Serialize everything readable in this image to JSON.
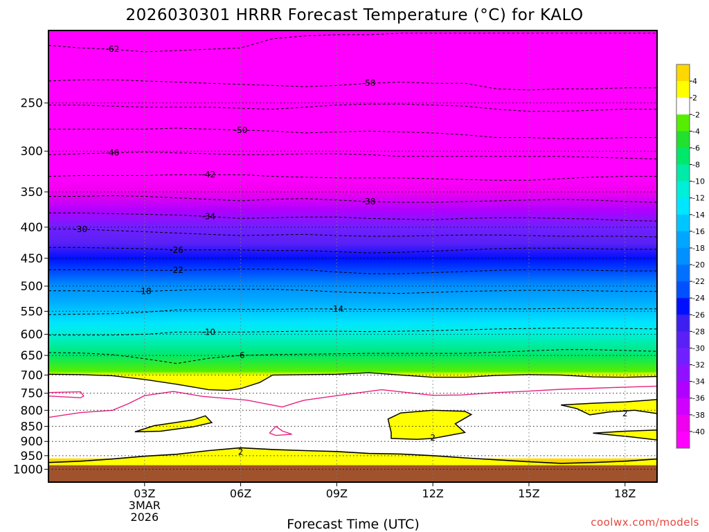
{
  "chart_data": {
    "type": "contour",
    "title": "2026030301 HRRR Forecast Temperature (°C) for KALO",
    "xlabel": "Forecast Time (UTC)",
    "ylabel": "",
    "credit": "coolwx.com/models",
    "y_scale": "log-pressure",
    "y_axis": {
      "min": 190,
      "max": 1050,
      "ticks": [
        250,
        300,
        350,
        400,
        450,
        500,
        550,
        600,
        650,
        700,
        750,
        800,
        850,
        900,
        950,
        1000
      ]
    },
    "x_axis": {
      "min_hour": 0,
      "max_hour": 19,
      "ticks": [
        {
          "hour": 3,
          "lines": [
            "03Z",
            "3MAR",
            "2026"
          ]
        },
        {
          "hour": 6,
          "lines": [
            "06Z"
          ]
        },
        {
          "hour": 9,
          "lines": [
            "09Z"
          ]
        },
        {
          "hour": 12,
          "lines": [
            "12Z"
          ]
        },
        {
          "hour": 15,
          "lines": [
            "15Z"
          ]
        },
        {
          "hour": 18,
          "lines": [
            "18Z"
          ]
        }
      ]
    },
    "x_hours": [
      0,
      1,
      2,
      3,
      4,
      5,
      6,
      7,
      8,
      9,
      10,
      11,
      12,
      13,
      14,
      15,
      16,
      17,
      18,
      19
    ],
    "profile_pressures": [
      190,
      230,
      250,
      275,
      300,
      330,
      350,
      375,
      400,
      425,
      450,
      475,
      500,
      525,
      550,
      575,
      600,
      650,
      690,
      700,
      800,
      925,
      965,
      990
    ],
    "profile_temps": [
      -64,
      -58,
      -54,
      -50,
      -46,
      -42,
      -39,
      -35,
      -31,
      -28,
      -25,
      -22,
      -19,
      -16,
      -14,
      -12,
      -10,
      -6,
      -3,
      1,
      1,
      1,
      3,
      5
    ],
    "dashed_isotherms": [
      {
        "value": -62,
        "label": "-62",
        "label_hour": 2.0,
        "p": [
          201,
          203,
          204,
          206,
          205,
          204,
          203,
          196,
          194,
          193,
          193,
          192,
          192,
          192,
          192,
          192,
          192,
          192,
          192,
          192
        ]
      },
      {
        "value": -58,
        "label": "-58",
        "label_hour": 10.0,
        "p": [
          230,
          229,
          229,
          230,
          231,
          232,
          233,
          234,
          235,
          234,
          232,
          231,
          232,
          232,
          237,
          238,
          237,
          237,
          236,
          236
        ]
      },
      {
        "value": -54,
        "label": "",
        "label_hour": 0,
        "p": [
          252,
          252,
          253,
          254,
          254,
          254,
          255,
          256,
          254,
          252,
          251,
          251,
          252,
          253,
          256,
          258,
          258,
          257,
          256,
          256
        ]
      },
      {
        "value": -50,
        "label": "-50",
        "label_hour": 6.0,
        "p": [
          276,
          276,
          276,
          276,
          275,
          276,
          277,
          278,
          280,
          279,
          278,
          279,
          280,
          282,
          285,
          285,
          286,
          286,
          285,
          285
        ]
      },
      {
        "value": -46,
        "label": "-46",
        "label_hour": 2.0,
        "p": [
          304,
          303,
          302,
          301,
          302,
          303,
          304,
          304,
          303,
          303,
          304,
          306,
          306,
          306,
          306,
          306,
          306,
          307,
          308,
          309
        ]
      },
      {
        "value": -42,
        "label": "-42",
        "label_hour": 5.0,
        "p": [
          330,
          329,
          329,
          329,
          328,
          328,
          328,
          330,
          331,
          332,
          332,
          332,
          333,
          334,
          335,
          335,
          333,
          331,
          330,
          330
        ]
      },
      {
        "value": -38,
        "label": "-38",
        "label_hour": 10.0,
        "p": [
          356,
          356,
          355,
          356,
          358,
          360,
          362,
          360,
          359,
          361,
          363,
          364,
          364,
          363,
          362,
          361,
          360,
          361,
          363,
          364
        ]
      },
      {
        "value": -34,
        "label": "-34",
        "label_hour": 5.0,
        "p": [
          379,
          379,
          380,
          381,
          382,
          384,
          387,
          386,
          385,
          385,
          387,
          388,
          389,
          387,
          386,
          386,
          387,
          388,
          390,
          391
        ]
      },
      {
        "value": -30,
        "label": "-30",
        "label_hour": 1.0,
        "p": [
          403,
          403,
          405,
          407,
          409,
          411,
          413,
          412,
          411,
          413,
          414,
          414,
          413,
          412,
          412,
          413,
          414,
          414,
          414,
          415
        ]
      },
      {
        "value": -26,
        "label": "-26",
        "label_hour": 4.0,
        "p": [
          432,
          432,
          433,
          434,
          436,
          436,
          436,
          437,
          437,
          439,
          441,
          440,
          438,
          436,
          434,
          433,
          433,
          434,
          435,
          435
        ]
      },
      {
        "value": -22,
        "label": "-22",
        "label_hour": 4.0,
        "p": [
          470,
          470,
          470,
          471,
          471,
          470,
          469,
          469,
          470,
          474,
          477,
          477,
          475,
          473,
          471,
          470,
          470,
          471,
          472,
          472
        ]
      },
      {
        "value": -18,
        "label": "-18",
        "label_hour": 3.0,
        "p": [
          509,
          509,
          510,
          510,
          508,
          506,
          506,
          506,
          508,
          511,
          513,
          514,
          512,
          510,
          509,
          508,
          508,
          509,
          510,
          510
        ]
      },
      {
        "value": -14,
        "label": "-14",
        "label_hour": 9.0,
        "p": [
          557,
          556,
          555,
          552,
          547,
          546,
          546,
          546,
          545,
          545,
          546,
          546,
          545,
          545,
          545,
          545,
          544,
          544,
          545,
          545
        ]
      },
      {
        "value": -10,
        "label": "-10",
        "label_hour": 5.0,
        "p": [
          602,
          602,
          602,
          600,
          595,
          595,
          595,
          594,
          593,
          593,
          594,
          593,
          592,
          590,
          588,
          587,
          586,
          586,
          587,
          588
        ]
      },
      {
        "value": -6,
        "label": "-6",
        "label_hour": 6.0,
        "p": [
          643,
          644,
          648,
          658,
          670,
          657,
          650,
          648,
          647,
          646,
          645,
          645,
          645,
          645,
          642,
          639,
          636,
          636,
          638,
          640
        ]
      }
    ],
    "green_warm_lower_edge": [
      [
        0,
        698
      ],
      [
        1,
        699
      ],
      [
        2,
        702
      ],
      [
        3,
        712
      ],
      [
        4,
        725
      ],
      [
        5,
        740
      ],
      [
        5.6,
        742
      ],
      [
        6,
        737
      ],
      [
        6.6,
        720
      ],
      [
        7,
        700
      ],
      [
        8,
        699
      ],
      [
        9,
        698
      ],
      [
        10,
        694
      ],
      [
        11,
        700
      ],
      [
        12,
        706
      ],
      [
        13,
        706
      ],
      [
        14,
        701
      ],
      [
        15,
        699
      ],
      [
        16,
        700
      ],
      [
        17,
        705
      ],
      [
        18,
        706
      ],
      [
        19,
        704
      ]
    ],
    "magenta_isotherm": {
      "value": 0,
      "label": "",
      "segments": [
        [
          [
            0,
            748
          ],
          [
            1,
            746
          ],
          [
            1.1,
            758
          ],
          [
            1,
            763
          ],
          [
            0,
            758
          ]
        ],
        [
          [
            0,
            822
          ],
          [
            1,
            807
          ],
          [
            2,
            800
          ],
          [
            2.5,
            780
          ],
          [
            3,
            757
          ],
          [
            3.9,
            745
          ],
          [
            4.8,
            759
          ],
          [
            6.2,
            770
          ],
          [
            7.3,
            790
          ],
          [
            7.8,
            775
          ],
          [
            8,
            770
          ],
          [
            9,
            757
          ],
          [
            10.4,
            740
          ],
          [
            12,
            756
          ],
          [
            12.9,
            755
          ],
          [
            13.5,
            751
          ],
          [
            14,
            748
          ],
          [
            15,
            744
          ],
          [
            16,
            739
          ],
          [
            17,
            736
          ],
          [
            18,
            733
          ],
          [
            19,
            730
          ]
        ],
        [
          [
            6.9,
            872
          ],
          [
            7.1,
            850
          ],
          [
            7.3,
            865
          ],
          [
            7.6,
            876
          ],
          [
            7.1,
            880
          ],
          [
            6.9,
            872
          ]
        ]
      ]
    },
    "yellow_regions": [
      {
        "label": "",
        "label_hour": 0,
        "points": [
          [
            2.7,
            868
          ],
          [
            3.3,
            848
          ],
          [
            4.5,
            830
          ],
          [
            4.9,
            817
          ],
          [
            5.1,
            838
          ],
          [
            4.5,
            852
          ],
          [
            3.5,
            866
          ],
          [
            2.7,
            868
          ]
        ]
      },
      {
        "label": "2",
        "label_hour": 12.0,
        "points": [
          [
            10.6,
            827
          ],
          [
            11,
            808
          ],
          [
            12,
            800
          ],
          [
            13,
            803
          ],
          [
            13.2,
            813
          ],
          [
            12.7,
            842
          ],
          [
            13,
            870
          ],
          [
            12.5,
            880
          ],
          [
            12,
            890
          ],
          [
            11.5,
            893
          ],
          [
            10.7,
            890
          ],
          [
            10.7,
            870
          ],
          [
            10.6,
            827
          ]
        ]
      },
      {
        "label": "2",
        "label_hour": 18.0,
        "points": [
          [
            16,
            784
          ],
          [
            17,
            779
          ],
          [
            18,
            775
          ],
          [
            19,
            768
          ],
          [
            19,
            810
          ],
          [
            18.3,
            800
          ],
          [
            17.5,
            805
          ],
          [
            16.9,
            814
          ],
          [
            16.5,
            795
          ],
          [
            16,
            784
          ]
        ]
      },
      {
        "label": "",
        "label_hour": 0,
        "points": [
          [
            17,
            872
          ],
          [
            18,
            866
          ],
          [
            19,
            862
          ],
          [
            19,
            895
          ],
          [
            18.2,
            885
          ],
          [
            17,
            872
          ]
        ]
      }
    ],
    "lower_warm_layer": {
      "label": "2",
      "label_hour": 6.0,
      "top_edge": [
        [
          0,
          975
        ],
        [
          1,
          970
        ],
        [
          2,
          962
        ],
        [
          3,
          952
        ],
        [
          4,
          945
        ],
        [
          5,
          932
        ],
        [
          6,
          922
        ],
        [
          7,
          928
        ],
        [
          8,
          932
        ],
        [
          9,
          935
        ],
        [
          10,
          942
        ],
        [
          11,
          944
        ],
        [
          12,
          950
        ],
        [
          13,
          958
        ],
        [
          14,
          965
        ],
        [
          15,
          972
        ],
        [
          16,
          978
        ],
        [
          17,
          975
        ],
        [
          18,
          970
        ],
        [
          19,
          962
        ]
      ]
    },
    "ground_pressure": 985,
    "colorbar": {
      "ticks": [
        "4",
        "2",
        "-2",
        "-4",
        "-6",
        "-8",
        "-10",
        "-12",
        "-14",
        "-16",
        "-18",
        "-20",
        "-22",
        "-24",
        "-26",
        "-28",
        "-30",
        "-32",
        "-34",
        "-36",
        "-38",
        "-40"
      ],
      "colors": [
        "#ffd700",
        "#ffff00",
        "#ffffff",
        "#55ee00",
        "#22e030",
        "#00e86a",
        "#00eaa8",
        "#00efd8",
        "#00e6ff",
        "#00c6ff",
        "#00a6ff",
        "#0090ff",
        "#0070ff",
        "#0050ff",
        "#0010ff",
        "#3d1ff0",
        "#5a20f5",
        "#7020ff",
        "#9010ff",
        "#b000ff",
        "#d000ff",
        "#ee00ee",
        "#ff00ff"
      ]
    },
    "colors": {
      "cold": "#ff00ff",
      "green_warm": "#55ee00",
      "neutral": "#ffffff",
      "yellow": "#ffff00",
      "ground": "#a0522d",
      "magenta_line": "#e8207e"
    }
  }
}
